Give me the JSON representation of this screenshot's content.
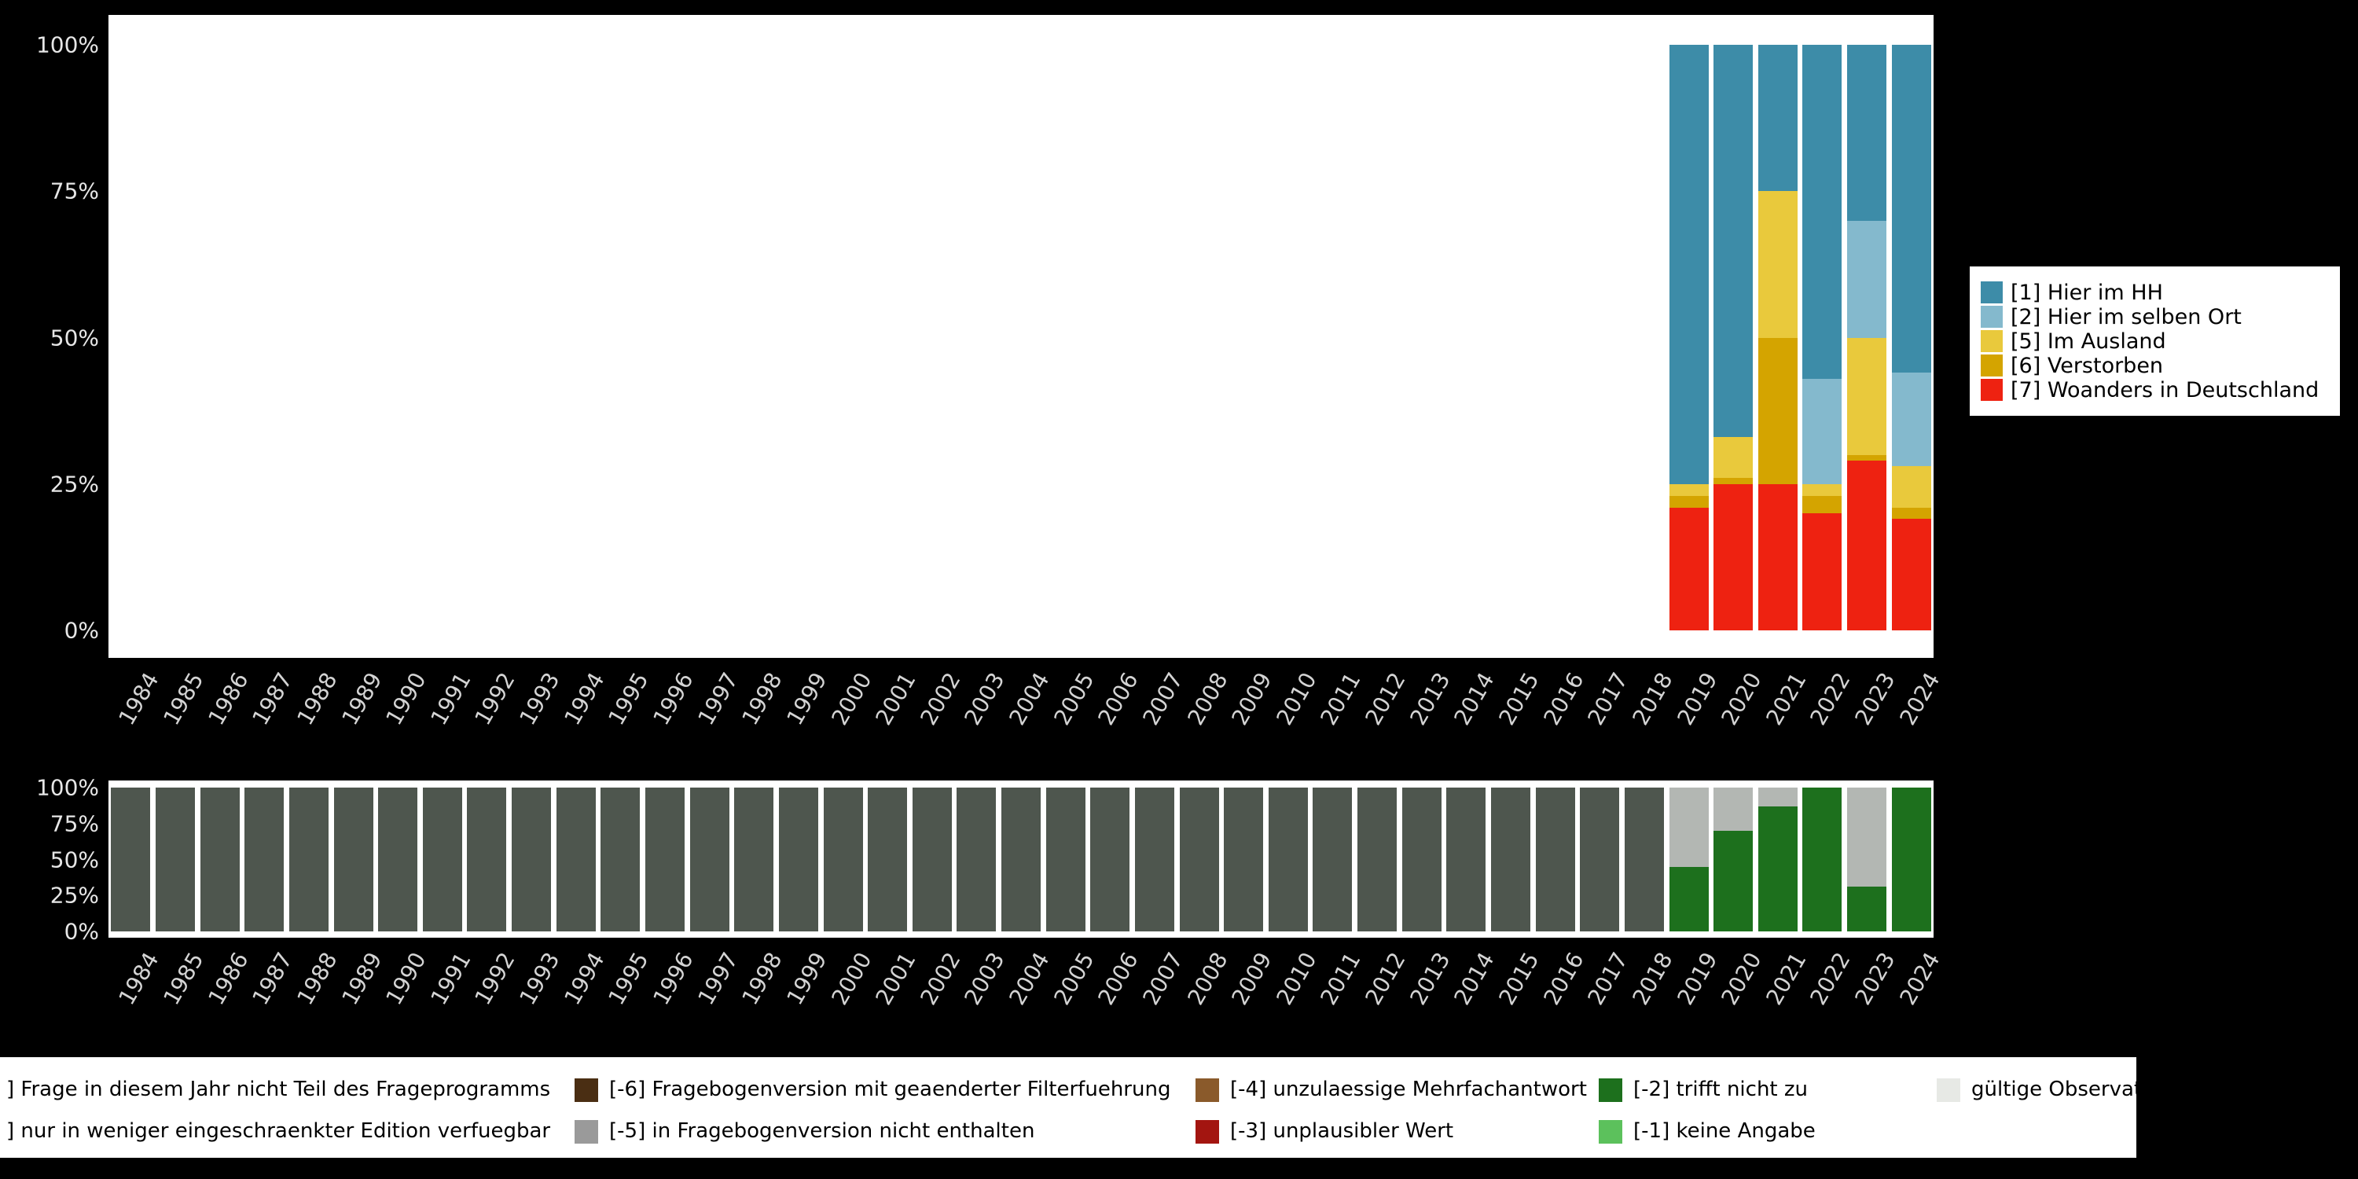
{
  "colors": {
    "background": "#000000",
    "plot_background": "#ffffff",
    "axis_text": "#e6e6e6"
  },
  "chart_data": [
    {
      "type": "bar",
      "stacked": true,
      "unit": "percent",
      "title": "",
      "xlabel": "",
      "ylabel": "",
      "ylim": [
        0,
        100
      ],
      "legend_position": "right",
      "categories": [
        "1984",
        "1985",
        "1986",
        "1987",
        "1988",
        "1989",
        "1990",
        "1991",
        "1992",
        "1993",
        "1994",
        "1995",
        "1996",
        "1997",
        "1998",
        "1999",
        "2000",
        "2001",
        "2002",
        "2003",
        "2004",
        "2005",
        "2006",
        "2007",
        "2008",
        "2009",
        "2010",
        "2011",
        "2012",
        "2013",
        "2014",
        "2015",
        "2016",
        "2017",
        "2018",
        "2019",
        "2020",
        "2021",
        "2022",
        "2023",
        "2024"
      ],
      "y_ticks": [
        {
          "p": 0,
          "label": "0%"
        },
        {
          "p": 25,
          "label": "25%"
        },
        {
          "p": 50,
          "label": "50%"
        },
        {
          "p": 75,
          "label": "75%"
        },
        {
          "p": 100,
          "label": "100%"
        }
      ],
      "series": [
        {
          "name": "[7] Woanders in Deutschland",
          "color": "#ee2211",
          "values": [
            0,
            0,
            0,
            0,
            0,
            0,
            0,
            0,
            0,
            0,
            0,
            0,
            0,
            0,
            0,
            0,
            0,
            0,
            0,
            0,
            0,
            0,
            0,
            0,
            0,
            0,
            0,
            0,
            0,
            0,
            0,
            0,
            0,
            0,
            0,
            21,
            25,
            25,
            20,
            29,
            19
          ]
        },
        {
          "name": "[6] Verstorben",
          "color": "#d4a400",
          "values": [
            0,
            0,
            0,
            0,
            0,
            0,
            0,
            0,
            0,
            0,
            0,
            0,
            0,
            0,
            0,
            0,
            0,
            0,
            0,
            0,
            0,
            0,
            0,
            0,
            0,
            0,
            0,
            0,
            0,
            0,
            0,
            0,
            0,
            0,
            0,
            2,
            1,
            25,
            3,
            1,
            2
          ]
        },
        {
          "name": "[5] Im Ausland",
          "color": "#e9c93c",
          "values": [
            0,
            0,
            0,
            0,
            0,
            0,
            0,
            0,
            0,
            0,
            0,
            0,
            0,
            0,
            0,
            0,
            0,
            0,
            0,
            0,
            0,
            0,
            0,
            0,
            0,
            0,
            0,
            0,
            0,
            0,
            0,
            0,
            0,
            0,
            0,
            2,
            7,
            25,
            2,
            20,
            7
          ]
        },
        {
          "name": "[2] Hier im selben Ort",
          "color": "#84b9cd",
          "values": [
            0,
            0,
            0,
            0,
            0,
            0,
            0,
            0,
            0,
            0,
            0,
            0,
            0,
            0,
            0,
            0,
            0,
            0,
            0,
            0,
            0,
            0,
            0,
            0,
            0,
            0,
            0,
            0,
            0,
            0,
            0,
            0,
            0,
            0,
            0,
            0,
            0,
            0,
            18,
            20,
            16
          ]
        },
        {
          "name": "[1] Hier im HH",
          "color": "#3d8ca8",
          "values": [
            0,
            0,
            0,
            0,
            0,
            0,
            0,
            0,
            0,
            0,
            0,
            0,
            0,
            0,
            0,
            0,
            0,
            0,
            0,
            0,
            0,
            0,
            0,
            0,
            0,
            0,
            0,
            0,
            0,
            0,
            0,
            0,
            0,
            0,
            0,
            75,
            67,
            25,
            57,
            30,
            56
          ]
        }
      ]
    },
    {
      "type": "bar",
      "stacked": true,
      "unit": "percent",
      "title": "",
      "xlabel": "",
      "ylabel": "",
      "ylim": [
        0,
        100
      ],
      "legend_position": "bottom",
      "categories": [
        "1984",
        "1985",
        "1986",
        "1987",
        "1988",
        "1989",
        "1990",
        "1991",
        "1992",
        "1993",
        "1994",
        "1995",
        "1996",
        "1997",
        "1998",
        "1999",
        "2000",
        "2001",
        "2002",
        "2003",
        "2004",
        "2005",
        "2006",
        "2007",
        "2008",
        "2009",
        "2010",
        "2011",
        "2012",
        "2013",
        "2014",
        "2015",
        "2016",
        "2017",
        "2018",
        "2019",
        "2020",
        "2021",
        "2022",
        "2023",
        "2024"
      ],
      "y_ticks": [
        {
          "p": 0,
          "label": "0%"
        },
        {
          "p": 25,
          "label": "25%"
        },
        {
          "p": 50,
          "label": "50%"
        },
        {
          "p": 75,
          "label": "75%"
        },
        {
          "p": 100,
          "label": "100%"
        }
      ],
      "series": [
        {
          "name": "dark-green",
          "color": "#1d701d",
          "values": [
            0,
            0,
            0,
            0,
            0,
            0,
            0,
            0,
            0,
            0,
            0,
            0,
            0,
            0,
            0,
            0,
            0,
            0,
            0,
            0,
            0,
            0,
            0,
            0,
            0,
            0,
            0,
            0,
            0,
            0,
            0,
            0,
            0,
            0,
            0,
            45,
            70,
            87,
            100,
            31,
            100
          ]
        },
        {
          "name": "light-gray",
          "color": "#b3b7b3",
          "values": [
            0,
            0,
            0,
            0,
            0,
            0,
            0,
            0,
            0,
            0,
            0,
            0,
            0,
            0,
            0,
            0,
            0,
            0,
            0,
            0,
            0,
            0,
            0,
            0,
            0,
            0,
            0,
            0,
            0,
            0,
            0,
            0,
            0,
            0,
            0,
            55,
            30,
            13,
            0,
            69,
            0
          ]
        },
        {
          "name": "dark-gray",
          "color": "#4e564e",
          "values": [
            100,
            100,
            100,
            100,
            100,
            100,
            100,
            100,
            100,
            100,
            100,
            100,
            100,
            100,
            100,
            100,
            100,
            100,
            100,
            100,
            100,
            100,
            100,
            100,
            100,
            100,
            100,
            100,
            100,
            100,
            100,
            100,
            100,
            100,
            100,
            0,
            0,
            0,
            0,
            0,
            0
          ]
        }
      ]
    }
  ],
  "top_legend": {
    "items": [
      {
        "label": "[1] Hier im HH",
        "color": "#3d8ca8"
      },
      {
        "label": "[2] Hier im selben Ort",
        "color": "#84b9cd"
      },
      {
        "label": "[5] Im Ausland",
        "color": "#e9c93c"
      },
      {
        "label": "[6] Verstorben",
        "color": "#d4a400"
      },
      {
        "label": "[7] Woanders in Deutschland",
        "color": "#ee2211"
      }
    ]
  },
  "bottom_legend": {
    "rows": [
      {
        "items": [
          {
            "label": "] Frage in diesem Jahr nicht Teil des Frageprogramms",
            "swatch": null
          },
          {
            "label": "[-6] Fragebogenversion mit geaenderter Filterfuehrung",
            "swatch": "#4a2e13"
          },
          {
            "label": "[-4] unzulaessige Mehrfachantwort",
            "swatch": "#8a5a2b"
          },
          {
            "label": "[-2] trifft nicht zu",
            "swatch": "#1d701d"
          },
          {
            "label": "gültige Observationen",
            "swatch": "#e7e9e5"
          }
        ]
      },
      {
        "items": [
          {
            "label": "] nur in weniger eingeschraenkter Edition verfuegbar",
            "swatch": null
          },
          {
            "label": "[-5] in Fragebogenversion nicht enthalten",
            "swatch": "#9a9a9a"
          },
          {
            "label": "[-3] unplausibler Wert",
            "swatch": "#a31510"
          },
          {
            "label": "[-1] keine Angabe",
            "swatch": "#5cc15c"
          }
        ]
      }
    ]
  }
}
